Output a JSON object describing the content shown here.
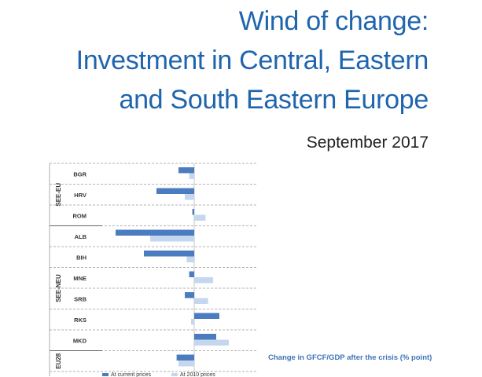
{
  "header": {
    "title_lines": [
      "Wind of change:",
      "Investment in Central, Eastern",
      "and South Eastern Europe"
    ],
    "date": "September 2017"
  },
  "chart_data": {
    "type": "bar",
    "orientation": "horizontal",
    "groups": [
      {
        "label": "SEE-EU",
        "categories": [
          "BGR",
          "HRV",
          "ROM"
        ]
      },
      {
        "label": "SEE-NEU",
        "categories": [
          "ALB",
          "BIH",
          "MNE",
          "SRB",
          "RKS",
          "MKD"
        ]
      },
      {
        "label": "EU28",
        "categories": [
          ""
        ]
      }
    ],
    "categories": [
      "BGR",
      "HRV",
      "ROM",
      "ALB",
      "BIH",
      "MNE",
      "SRB",
      "RKS",
      "MKD",
      ""
    ],
    "series": [
      {
        "name": "At current prices",
        "color": "#4a7cbf",
        "values": [
          -2.5,
          -6.0,
          -0.3,
          -12.5,
          -8.0,
          -0.8,
          -1.5,
          4.0,
          3.5,
          -2.8
        ]
      },
      {
        "name": "At 2010 prices",
        "color": "#c5d7ee",
        "values": [
          -0.8,
          -1.5,
          1.8,
          -7.0,
          -1.2,
          3.0,
          2.2,
          -0.5,
          5.5,
          -2.5
        ]
      }
    ],
    "xlim": [
      -14,
      8
    ],
    "xlabel": "Change in GFCF/GDP after the crisis (% point)",
    "grid": "dashed horizontal separators"
  }
}
